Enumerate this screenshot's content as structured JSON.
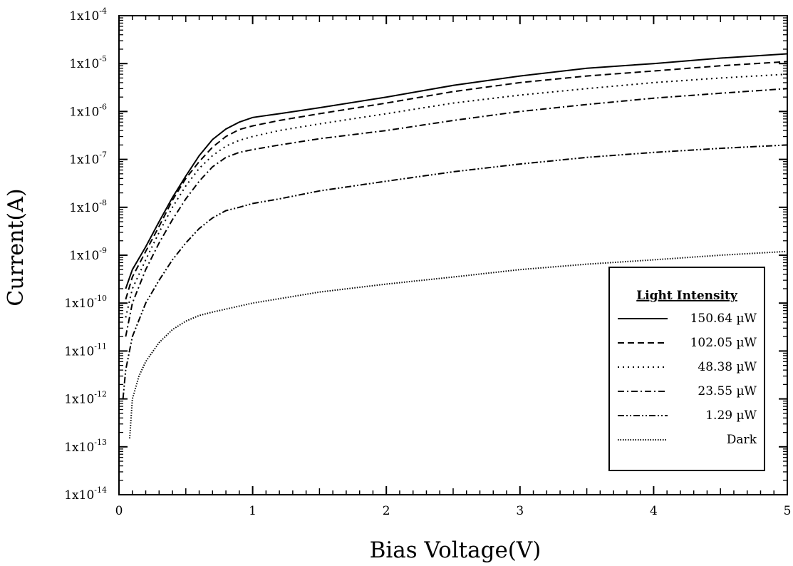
{
  "chart_data": {
    "type": "line",
    "xlabel": "Bias Voltage(V)",
    "ylabel": "Current(A)",
    "xlim": [
      0,
      5
    ],
    "ylim": [
      1e-14,
      0.0001
    ],
    "yscale": "log",
    "grid": false,
    "x_ticks": [
      {
        "value": 0,
        "label": "0"
      },
      {
        "value": 1,
        "label": "1"
      },
      {
        "value": 2,
        "label": "2"
      },
      {
        "value": 3,
        "label": "3"
      },
      {
        "value": 4,
        "label": "4"
      },
      {
        "value": 5,
        "label": "5"
      }
    ],
    "y_ticks": [
      {
        "exp": -4,
        "base": "1x10",
        "sup": "-4"
      },
      {
        "exp": -5,
        "base": "1x10",
        "sup": "-5"
      },
      {
        "exp": -6,
        "base": "1x10",
        "sup": "-6"
      },
      {
        "exp": -7,
        "base": "1x10",
        "sup": "-7"
      },
      {
        "exp": -8,
        "base": "1x10",
        "sup": "-8"
      },
      {
        "exp": -9,
        "base": "1x10",
        "sup": "-9"
      },
      {
        "exp": -10,
        "base": "1x10",
        "sup": "-10"
      },
      {
        "exp": -11,
        "base": "1x10",
        "sup": "-11"
      },
      {
        "exp": -12,
        "base": "1x10",
        "sup": "-12"
      },
      {
        "exp": -13,
        "base": "1x10",
        "sup": "-13"
      },
      {
        "exp": -14,
        "base": "1x10",
        "sup": "-14"
      }
    ],
    "legend_title": "Light Intensity",
    "legend_position": "bottom-right",
    "series": [
      {
        "name": "150.64 µW",
        "dash": "solid",
        "x": [
          0.05,
          0.1,
          0.2,
          0.3,
          0.4,
          0.5,
          0.6,
          0.7,
          0.8,
          0.9,
          1.0,
          1.2,
          1.5,
          2.0,
          2.5,
          3.0,
          3.5,
          4.0,
          4.5,
          5.0
        ],
        "y": [
          2e-10,
          5e-10,
          1.5e-09,
          5e-09,
          1.6e-08,
          4.5e-08,
          1.2e-07,
          2.6e-07,
          4.3e-07,
          6e-07,
          7.5e-07,
          9e-07,
          1.2e-06,
          2e-06,
          3.5e-06,
          5.5e-06,
          8e-06,
          1e-05,
          1.3e-05,
          1.6e-05
        ]
      },
      {
        "name": "102.05 µW",
        "dash": "dashed",
        "x": [
          0.05,
          0.1,
          0.2,
          0.3,
          0.4,
          0.5,
          0.6,
          0.7,
          0.8,
          0.9,
          1.0,
          1.2,
          1.5,
          2.0,
          2.5,
          3.0,
          3.5,
          4.0,
          4.5,
          5.0
        ],
        "y": [
          1.2e-10,
          3.5e-10,
          1.2e-09,
          4e-09,
          1.4e-08,
          4e-08,
          9e-08,
          1.8e-07,
          3e-07,
          4.2e-07,
          5e-07,
          6.5e-07,
          9e-07,
          1.5e-06,
          2.6e-06,
          4e-06,
          5.5e-06,
          7e-06,
          9e-06,
          1.1e-05
        ]
      },
      {
        "name": "48.38 µW",
        "dash": "dotted",
        "x": [
          0.05,
          0.1,
          0.2,
          0.3,
          0.4,
          0.5,
          0.6,
          0.7,
          0.8,
          0.9,
          1.0,
          1.2,
          1.5,
          2.0,
          2.5,
          3.0,
          3.5,
          4.0,
          4.5,
          5.0
        ],
        "y": [
          5e-11,
          2e-10,
          8e-10,
          3e-09,
          1e-08,
          2.8e-08,
          6.5e-08,
          1.2e-07,
          1.9e-07,
          2.5e-07,
          3e-07,
          4e-07,
          5.5e-07,
          9e-07,
          1.5e-06,
          2.2e-06,
          3e-06,
          4e-06,
          5e-06,
          6e-06
        ]
      },
      {
        "name": "23.55 µW",
        "dash": "dash-dot",
        "x": [
          0.05,
          0.1,
          0.2,
          0.3,
          0.4,
          0.5,
          0.6,
          0.7,
          0.8,
          0.9,
          1.0,
          1.2,
          1.5,
          2.0,
          2.5,
          3.0,
          3.5,
          4.0,
          4.5,
          5.0
        ],
        "y": [
          2e-11,
          1e-10,
          5e-10,
          1.8e-09,
          5.5e-09,
          1.5e-08,
          3.5e-08,
          7e-08,
          1.1e-07,
          1.4e-07,
          1.6e-07,
          2e-07,
          2.7e-07,
          4e-07,
          6.5e-07,
          1e-06,
          1.4e-06,
          1.9e-06,
          2.4e-06,
          3e-06
        ]
      },
      {
        "name": "1.29 µW",
        "dash": "dash-dot-dot",
        "x": [
          0.03,
          0.05,
          0.1,
          0.2,
          0.3,
          0.4,
          0.5,
          0.6,
          0.7,
          0.8,
          0.9,
          1.0,
          1.2,
          1.5,
          2.0,
          2.5,
          3.0,
          3.5,
          4.0,
          4.5,
          5.0
        ],
        "y": [
          1e-12,
          4e-12,
          2e-11,
          1e-10,
          3e-10,
          8e-10,
          1.8e-09,
          3.6e-09,
          6e-09,
          8.5e-09,
          1e-08,
          1.2e-08,
          1.5e-08,
          2.2e-08,
          3.5e-08,
          5.5e-08,
          8e-08,
          1.1e-07,
          1.4e-07,
          1.7e-07,
          2e-07
        ]
      },
      {
        "name": "Dark",
        "dash": "dense-dot",
        "x": [
          0.08,
          0.1,
          0.15,
          0.2,
          0.3,
          0.4,
          0.5,
          0.6,
          0.7,
          0.8,
          1.0,
          1.5,
          2.0,
          2.5,
          3.0,
          3.5,
          4.0,
          4.5,
          5.0
        ],
        "y": [
          1.5e-13,
          1e-12,
          3e-12,
          6e-12,
          1.5e-11,
          2.8e-11,
          4.2e-11,
          5.5e-11,
          6.5e-11,
          7.5e-11,
          1e-10,
          1.7e-10,
          2.5e-10,
          3.5e-10,
          5e-10,
          6.5e-10,
          8e-10,
          1e-09,
          1.2e-09
        ]
      }
    ]
  }
}
